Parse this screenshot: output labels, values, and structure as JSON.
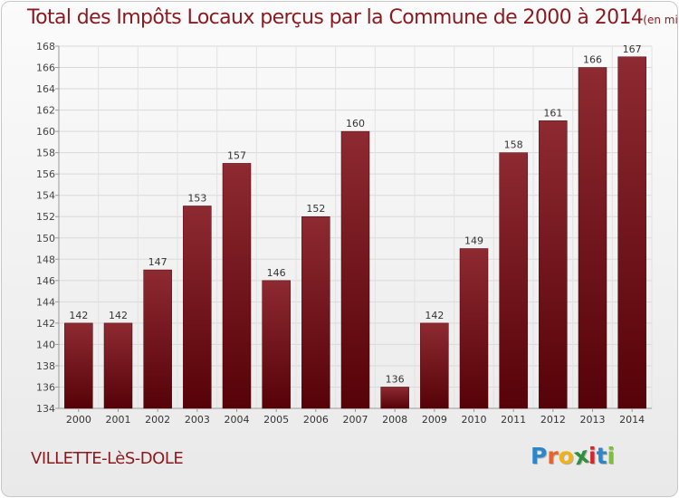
{
  "chart_data": {
    "type": "bar",
    "title": "Total des Impôts Locaux perçus par la Commune de 2000 à 2014",
    "unit": "(en milliers d'€)",
    "categories": [
      "2000",
      "2001",
      "2002",
      "2003",
      "2004",
      "2005",
      "2006",
      "2007",
      "2008",
      "2009",
      "2010",
      "2011",
      "2012",
      "2013",
      "2014"
    ],
    "values": [
      142,
      142,
      147,
      153,
      157,
      146,
      152,
      160,
      136,
      142,
      149,
      158,
      161,
      166,
      167
    ],
    "ylim": [
      134,
      168
    ],
    "yticks": [
      134,
      136,
      138,
      140,
      142,
      144,
      146,
      148,
      150,
      152,
      154,
      156,
      158,
      160,
      162,
      164,
      166,
      168
    ],
    "grid": true,
    "bar_color": "#7a1a20",
    "title_color": "#8a1a1f"
  },
  "footer": {
    "commune": "VILLETTE-LèS-DOLE"
  },
  "logo": {
    "letters": [
      "P",
      "r",
      "o",
      "x",
      "i",
      "t",
      "i"
    ],
    "colors": [
      "#2e86c8",
      "#e9622b",
      "#f0b21b",
      "#2f8f3a",
      "#d8242b",
      "#2e86c8",
      "#7cbf3b"
    ]
  }
}
